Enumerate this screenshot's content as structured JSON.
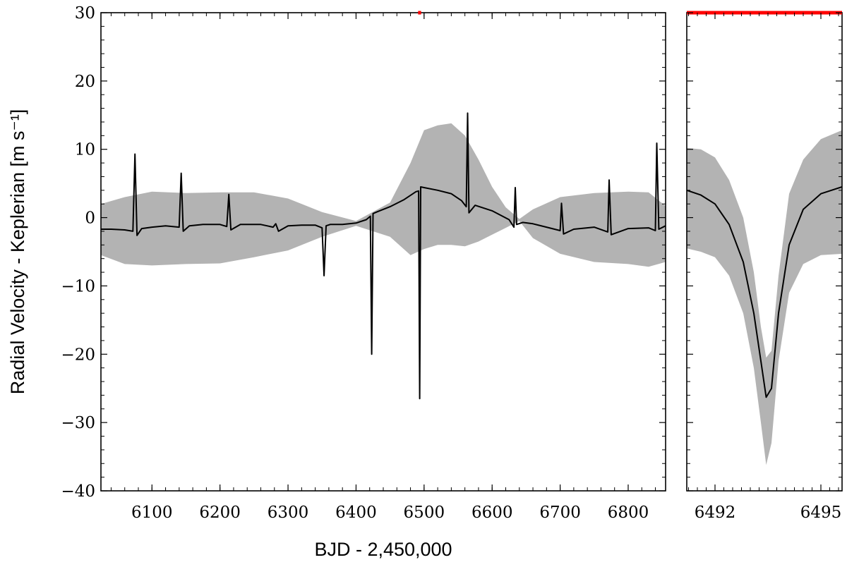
{
  "chart_data": [
    {
      "type": "line",
      "panel": "main",
      "xlabel": "BJD - 2,450,000",
      "ylabel": "Radial Velocity - Keplerian [m s⁻¹]",
      "xlim": [
        6025,
        6855
      ],
      "ylim": [
        -40,
        30
      ],
      "x_ticks": [
        6100,
        6200,
        6300,
        6400,
        6500,
        6600,
        6700,
        6800
      ],
      "y_ticks": [
        -40,
        -30,
        -20,
        -10,
        0,
        10,
        20,
        30
      ],
      "x_tick_labels": [
        "6100",
        "6200",
        "6300",
        "6400",
        "6500",
        "6600",
        "6700",
        "6800"
      ],
      "y_tick_labels": [
        "−40",
        "−30",
        "−20",
        "−10",
        "0",
        "10",
        "20",
        "30"
      ],
      "grid": false,
      "zoom_marker": {
        "x_range": [
          6491.2,
          6495.6
        ],
        "color": "#ff0000"
      },
      "series": [
        {
          "role": "model",
          "color": "#000000",
          "x": [
            6025,
            6040,
            6060,
            6072,
            6075,
            6078,
            6085,
            6100,
            6120,
            6140,
            6143,
            6146,
            6155,
            6175,
            6200,
            6210,
            6213,
            6216,
            6230,
            6260,
            6278,
            6282,
            6286,
            6300,
            6320,
            6340,
            6350,
            6353,
            6356,
            6362,
            6380,
            6400,
            6415,
            6421,
            6423,
            6425,
            6432,
            6450,
            6470,
            6488,
            6492,
            6493.5,
            6495,
            6500,
            6520,
            6540,
            6555,
            6562,
            6564,
            6566,
            6575,
            6600,
            6625,
            6632,
            6634,
            6636,
            6645,
            6660,
            6680,
            6700,
            6702,
            6705,
            6720,
            6750,
            6770,
            6772,
            6775,
            6800,
            6830,
            6840,
            6842,
            6845,
            6855
          ],
          "y": [
            -1.7,
            -1.7,
            -1.8,
            -2.0,
            9.3,
            -2.6,
            -1.6,
            -1.4,
            -1.2,
            -1.4,
            6.5,
            -2.0,
            -1.2,
            -1.0,
            -1.0,
            -1.3,
            3.4,
            -1.8,
            -1.0,
            -1.0,
            -1.4,
            -0.9,
            -2.0,
            -1.2,
            -1.1,
            -1.1,
            -1.5,
            -8.5,
            -1.2,
            -1.0,
            -1.0,
            -0.8,
            -0.3,
            0.2,
            -20.0,
            0.6,
            0.9,
            1.6,
            2.6,
            3.8,
            3.9,
            -26.5,
            4.5,
            4.4,
            4.0,
            3.5,
            2.5,
            1.6,
            15.3,
            0.7,
            1.8,
            1.0,
            -0.3,
            -1.4,
            4.4,
            -1.0,
            -0.7,
            -0.9,
            -1.4,
            -1.9,
            2.1,
            -2.4,
            -1.7,
            -1.4,
            -2.1,
            5.5,
            -2.5,
            -1.6,
            -1.5,
            -1.9,
            10.9,
            -1.7,
            -1.2
          ]
        },
        {
          "role": "uncertainty_band",
          "color": "#b3b3b3",
          "x": [
            6025,
            6060,
            6100,
            6150,
            6200,
            6250,
            6300,
            6350,
            6400,
            6450,
            6480,
            6500,
            6520,
            6540,
            6560,
            6580,
            6600,
            6620,
            6640,
            6660,
            6700,
            6750,
            6800,
            6830,
            6855
          ],
          "upper": [
            2.0,
            3.0,
            3.8,
            3.6,
            3.7,
            3.7,
            2.8,
            0.8,
            -0.5,
            2.2,
            8.0,
            12.8,
            13.5,
            13.8,
            12.0,
            8.5,
            4.5,
            1.5,
            -0.2,
            1.2,
            3.0,
            3.6,
            3.8,
            3.7,
            1.7
          ],
          "lower": [
            -5.5,
            -6.8,
            -7.0,
            -6.8,
            -6.7,
            -5.8,
            -4.8,
            -2.8,
            -1.2,
            -2.8,
            -5.5,
            -4.6,
            -4.0,
            -4.0,
            -4.2,
            -3.5,
            -2.5,
            -1.5,
            -0.5,
            -3.0,
            -5.3,
            -6.5,
            -6.8,
            -7.2,
            -6.5
          ]
        }
      ]
    },
    {
      "type": "line",
      "panel": "zoom",
      "xlim": [
        6491.2,
        6495.6
      ],
      "ylim": [
        -40,
        30
      ],
      "x_ticks": [
        6492,
        6495
      ],
      "x_tick_labels": [
        "6492",
        "6495"
      ],
      "grid": false,
      "top_marker_color": "#ff0000",
      "series": [
        {
          "role": "model",
          "color": "#000000",
          "x": [
            6491.2,
            6491.6,
            6492.0,
            6492.4,
            6492.8,
            6493.1,
            6493.3,
            6493.45,
            6493.6,
            6493.8,
            6494.1,
            6494.5,
            6495.0,
            6495.6
          ],
          "y": [
            4.0,
            3.3,
            2.0,
            -1.0,
            -6.5,
            -14.0,
            -21.0,
            -26.3,
            -25.0,
            -14.0,
            -4.0,
            1.2,
            3.5,
            4.5
          ]
        },
        {
          "role": "uncertainty_band",
          "color": "#b3b3b3",
          "x": [
            6491.2,
            6491.6,
            6492.0,
            6492.4,
            6492.8,
            6493.1,
            6493.3,
            6493.45,
            6493.6,
            6493.8,
            6494.1,
            6494.5,
            6495.0,
            6495.6
          ],
          "upper": [
            10.2,
            10.0,
            8.8,
            5.5,
            0.0,
            -8.0,
            -16.0,
            -20.5,
            -19.5,
            -8.5,
            3.5,
            8.5,
            11.5,
            12.8
          ],
          "lower": [
            -4.5,
            -5.0,
            -5.8,
            -8.5,
            -14.0,
            -22.0,
            -30.0,
            -36.2,
            -33.0,
            -21.0,
            -11.0,
            -6.8,
            -5.5,
            -5.3
          ]
        }
      ]
    }
  ]
}
